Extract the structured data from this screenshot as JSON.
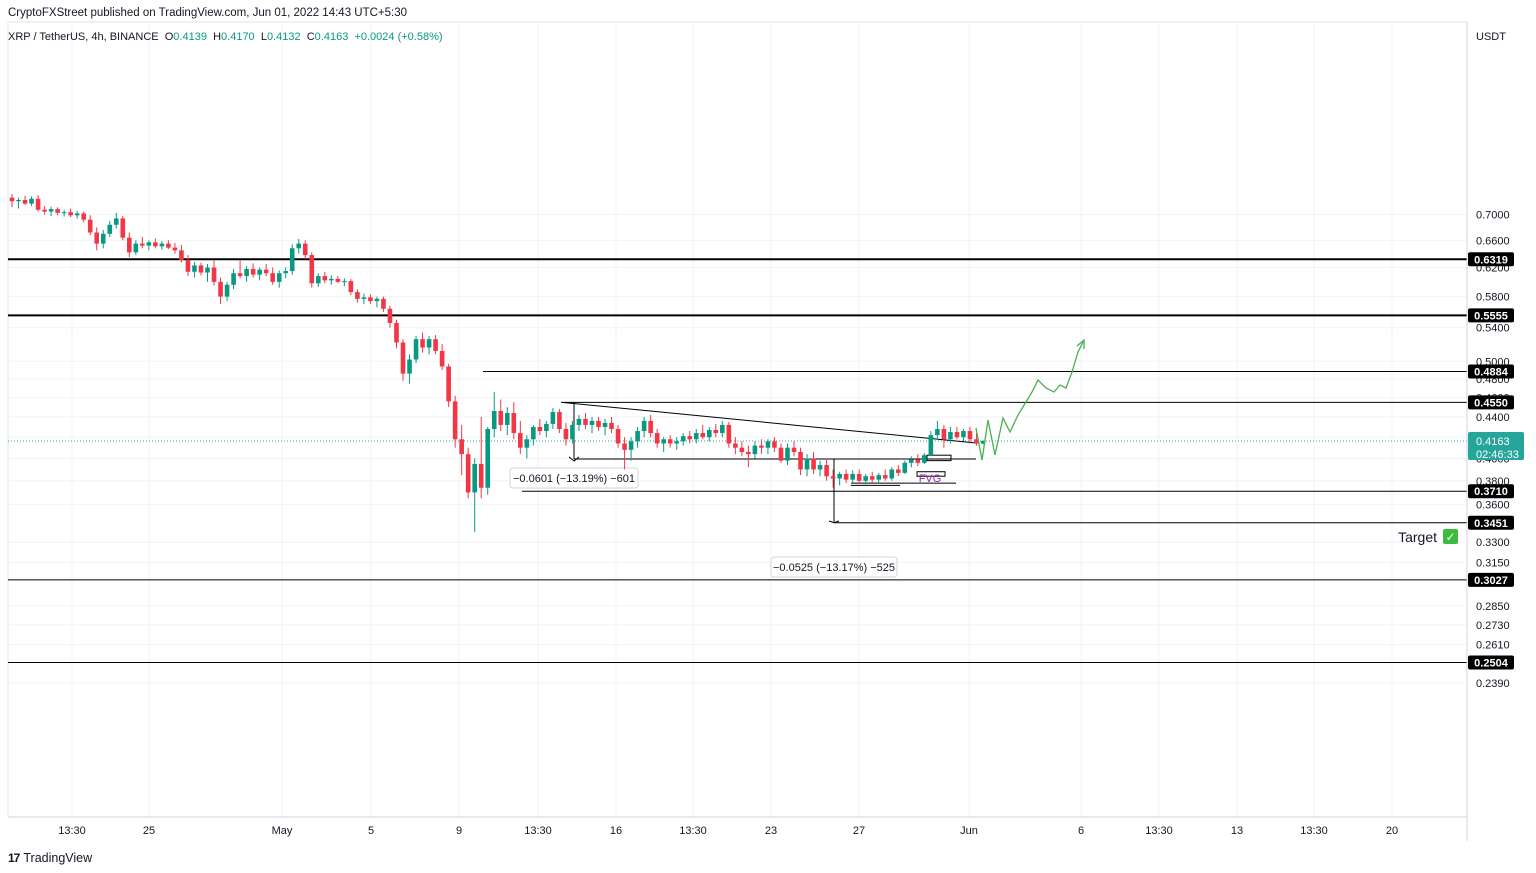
{
  "header": {
    "published": "CryptoFXStreet published on TradingView.com, Jun 01, 2022 14:43 UTC+5:30",
    "symbol": "XRP / TetherUS, 4h, BINANCE",
    "o_label": "O",
    "o_value": "0.4139",
    "h_label": "H",
    "h_value": "0.4170",
    "l_label": "L",
    "l_value": "0.4132",
    "c_label": "C",
    "c_value": "0.4163",
    "change": "+0.0024 (+0.58%)"
  },
  "footer": {
    "brand": "TradingView",
    "logo": "17"
  },
  "axis": {
    "currency": "USDT"
  },
  "colors": {
    "up": "#089981",
    "down": "#f23645",
    "projection": "#4caf50",
    "fvg_text": "#9c27b0",
    "price_tag": "#26a69a",
    "grid": "#f0f3fa"
  },
  "chart_data": {
    "type": "candlestick",
    "title": "XRP / TetherUS, 4h, BINANCE",
    "ylim": [
      0.23,
      0.72
    ],
    "y_scale": "log",
    "y_ticks": [
      "0.7000",
      "0.6600",
      "0.6200",
      "0.5800",
      "0.5400",
      "0.5000",
      "0.4800",
      "0.4600",
      "0.4400",
      "0.4200",
      "0.4000",
      "0.3800",
      "0.3600",
      "0.3300",
      "0.3150",
      "0.2850",
      "0.2730",
      "0.2610",
      "0.2390"
    ],
    "x_ticks": [
      "13:30",
      "25",
      "May",
      "5",
      "9",
      "13:30",
      "16",
      "13:30",
      "23",
      "27",
      "Jun",
      "6",
      "13:30",
      "13",
      "13:30",
      "20"
    ],
    "levels": [
      {
        "label": "0.6319",
        "value": 0.6319,
        "style": "thick"
      },
      {
        "label": "0.5555",
        "value": 0.5555,
        "style": "thick"
      },
      {
        "label": "0.4884",
        "value": 0.4884,
        "style": "thin"
      },
      {
        "label": "0.4550",
        "value": 0.455,
        "style": "thin"
      },
      {
        "label": "0.3710",
        "value": 0.371,
        "style": "thin"
      },
      {
        "label": "0.3451",
        "value": 0.3451,
        "style": "thin"
      },
      {
        "label": "0.3027",
        "value": 0.3027,
        "style": "thin"
      },
      {
        "label": "0.2504",
        "value": 0.2504,
        "style": "thin"
      }
    ],
    "current_price": {
      "label": "0.4163",
      "value": 0.4163,
      "countdown": "02:46:33"
    },
    "annotations": {
      "measure1": "−0.0601 (−13.19%) −601",
      "measure2": "−0.0525 (−13.17%) −525",
      "fvg": "FVG",
      "target": "Target",
      "target_check": "✓"
    },
    "candles": [
      {
        "o": 0.728,
        "h": 0.734,
        "l": 0.712,
        "c": 0.722
      },
      {
        "o": 0.722,
        "h": 0.728,
        "l": 0.71,
        "c": 0.724
      },
      {
        "o": 0.724,
        "h": 0.731,
        "l": 0.716,
        "c": 0.718
      },
      {
        "o": 0.718,
        "h": 0.73,
        "l": 0.714,
        "c": 0.726
      },
      {
        "o": 0.726,
        "h": 0.732,
        "l": 0.705,
        "c": 0.708
      },
      {
        "o": 0.708,
        "h": 0.714,
        "l": 0.7,
        "c": 0.705
      },
      {
        "o": 0.705,
        "h": 0.713,
        "l": 0.698,
        "c": 0.709
      },
      {
        "o": 0.709,
        "h": 0.712,
        "l": 0.699,
        "c": 0.703
      },
      {
        "o": 0.703,
        "h": 0.708,
        "l": 0.697,
        "c": 0.704
      },
      {
        "o": 0.704,
        "h": 0.71,
        "l": 0.696,
        "c": 0.699
      },
      {
        "o": 0.699,
        "h": 0.706,
        "l": 0.694,
        "c": 0.702
      },
      {
        "o": 0.702,
        "h": 0.705,
        "l": 0.688,
        "c": 0.692
      },
      {
        "o": 0.692,
        "h": 0.699,
        "l": 0.668,
        "c": 0.672
      },
      {
        "o": 0.672,
        "h": 0.68,
        "l": 0.645,
        "c": 0.655
      },
      {
        "o": 0.655,
        "h": 0.676,
        "l": 0.648,
        "c": 0.67
      },
      {
        "o": 0.67,
        "h": 0.69,
        "l": 0.665,
        "c": 0.684
      },
      {
        "o": 0.684,
        "h": 0.703,
        "l": 0.678,
        "c": 0.694
      },
      {
        "o": 0.694,
        "h": 0.698,
        "l": 0.66,
        "c": 0.664
      },
      {
        "o": 0.664,
        "h": 0.672,
        "l": 0.635,
        "c": 0.642
      },
      {
        "o": 0.642,
        "h": 0.66,
        "l": 0.638,
        "c": 0.655
      },
      {
        "o": 0.655,
        "h": 0.665,
        "l": 0.648,
        "c": 0.652
      },
      {
        "o": 0.652,
        "h": 0.66,
        "l": 0.645,
        "c": 0.657
      },
      {
        "o": 0.657,
        "h": 0.663,
        "l": 0.648,
        "c": 0.651
      },
      {
        "o": 0.651,
        "h": 0.659,
        "l": 0.646,
        "c": 0.655
      },
      {
        "o": 0.655,
        "h": 0.66,
        "l": 0.647,
        "c": 0.649
      },
      {
        "o": 0.649,
        "h": 0.656,
        "l": 0.64,
        "c": 0.645
      },
      {
        "o": 0.645,
        "h": 0.653,
        "l": 0.627,
        "c": 0.631
      },
      {
        "o": 0.631,
        "h": 0.638,
        "l": 0.608,
        "c": 0.614
      },
      {
        "o": 0.614,
        "h": 0.628,
        "l": 0.606,
        "c": 0.623
      },
      {
        "o": 0.623,
        "h": 0.627,
        "l": 0.609,
        "c": 0.613
      },
      {
        "o": 0.613,
        "h": 0.625,
        "l": 0.6,
        "c": 0.62
      },
      {
        "o": 0.62,
        "h": 0.63,
        "l": 0.595,
        "c": 0.6
      },
      {
        "o": 0.6,
        "h": 0.606,
        "l": 0.57,
        "c": 0.58
      },
      {
        "o": 0.58,
        "h": 0.6,
        "l": 0.574,
        "c": 0.596
      },
      {
        "o": 0.596,
        "h": 0.618,
        "l": 0.59,
        "c": 0.612
      },
      {
        "o": 0.612,
        "h": 0.63,
        "l": 0.605,
        "c": 0.608
      },
      {
        "o": 0.608,
        "h": 0.622,
        "l": 0.6,
        "c": 0.618
      },
      {
        "o": 0.618,
        "h": 0.626,
        "l": 0.606,
        "c": 0.61
      },
      {
        "o": 0.61,
        "h": 0.62,
        "l": 0.602,
        "c": 0.617
      },
      {
        "o": 0.617,
        "h": 0.625,
        "l": 0.608,
        "c": 0.612
      },
      {
        "o": 0.612,
        "h": 0.62,
        "l": 0.596,
        "c": 0.6
      },
      {
        "o": 0.6,
        "h": 0.616,
        "l": 0.592,
        "c": 0.612
      },
      {
        "o": 0.612,
        "h": 0.62,
        "l": 0.605,
        "c": 0.615
      },
      {
        "o": 0.615,
        "h": 0.654,
        "l": 0.61,
        "c": 0.648
      },
      {
        "o": 0.648,
        "h": 0.662,
        "l": 0.64,
        "c": 0.655
      },
      {
        "o": 0.655,
        "h": 0.66,
        "l": 0.632,
        "c": 0.638
      },
      {
        "o": 0.638,
        "h": 0.642,
        "l": 0.592,
        "c": 0.598
      },
      {
        "o": 0.598,
        "h": 0.612,
        "l": 0.593,
        "c": 0.608
      },
      {
        "o": 0.608,
        "h": 0.614,
        "l": 0.598,
        "c": 0.602
      },
      {
        "o": 0.602,
        "h": 0.609,
        "l": 0.596,
        "c": 0.604
      },
      {
        "o": 0.604,
        "h": 0.608,
        "l": 0.598,
        "c": 0.6
      },
      {
        "o": 0.6,
        "h": 0.605,
        "l": 0.594,
        "c": 0.601
      },
      {
        "o": 0.601,
        "h": 0.604,
        "l": 0.582,
        "c": 0.586
      },
      {
        "o": 0.586,
        "h": 0.59,
        "l": 0.572,
        "c": 0.577
      },
      {
        "o": 0.577,
        "h": 0.584,
        "l": 0.57,
        "c": 0.579
      },
      {
        "o": 0.579,
        "h": 0.583,
        "l": 0.57,
        "c": 0.574
      },
      {
        "o": 0.574,
        "h": 0.58,
        "l": 0.566,
        "c": 0.577
      },
      {
        "o": 0.577,
        "h": 0.58,
        "l": 0.56,
        "c": 0.564
      },
      {
        "o": 0.564,
        "h": 0.568,
        "l": 0.54,
        "c": 0.546
      },
      {
        "o": 0.546,
        "h": 0.55,
        "l": 0.515,
        "c": 0.522
      },
      {
        "o": 0.522,
        "h": 0.526,
        "l": 0.478,
        "c": 0.486
      },
      {
        "o": 0.486,
        "h": 0.508,
        "l": 0.475,
        "c": 0.502
      },
      {
        "o": 0.502,
        "h": 0.53,
        "l": 0.498,
        "c": 0.526
      },
      {
        "o": 0.526,
        "h": 0.534,
        "l": 0.51,
        "c": 0.516
      },
      {
        "o": 0.516,
        "h": 0.53,
        "l": 0.508,
        "c": 0.526
      },
      {
        "o": 0.526,
        "h": 0.531,
        "l": 0.508,
        "c": 0.512
      },
      {
        "o": 0.512,
        "h": 0.52,
        "l": 0.49,
        "c": 0.494
      },
      {
        "o": 0.494,
        "h": 0.497,
        "l": 0.45,
        "c": 0.456
      },
      {
        "o": 0.456,
        "h": 0.462,
        "l": 0.41,
        "c": 0.418
      },
      {
        "o": 0.418,
        "h": 0.432,
        "l": 0.385,
        "c": 0.404
      },
      {
        "o": 0.404,
        "h": 0.41,
        "l": 0.365,
        "c": 0.37
      },
      {
        "o": 0.37,
        "h": 0.4,
        "l": 0.338,
        "c": 0.395
      },
      {
        "o": 0.395,
        "h": 0.44,
        "l": 0.365,
        "c": 0.374
      },
      {
        "o": 0.374,
        "h": 0.43,
        "l": 0.368,
        "c": 0.428
      },
      {
        "o": 0.428,
        "h": 0.466,
        "l": 0.42,
        "c": 0.446
      },
      {
        "o": 0.446,
        "h": 0.458,
        "l": 0.426,
        "c": 0.432
      },
      {
        "o": 0.432,
        "h": 0.45,
        "l": 0.422,
        "c": 0.444
      },
      {
        "o": 0.444,
        "h": 0.455,
        "l": 0.418,
        "c": 0.424
      },
      {
        "o": 0.424,
        "h": 0.436,
        "l": 0.404,
        "c": 0.41
      },
      {
        "o": 0.41,
        "h": 0.422,
        "l": 0.4,
        "c": 0.418
      },
      {
        "o": 0.418,
        "h": 0.432,
        "l": 0.412,
        "c": 0.43
      },
      {
        "o": 0.43,
        "h": 0.438,
        "l": 0.422,
        "c": 0.426
      },
      {
        "o": 0.426,
        "h": 0.436,
        "l": 0.42,
        "c": 0.433
      },
      {
        "o": 0.433,
        "h": 0.449,
        "l": 0.428,
        "c": 0.445
      },
      {
        "o": 0.445,
        "h": 0.448,
        "l": 0.424,
        "c": 0.428
      },
      {
        "o": 0.428,
        "h": 0.434,
        "l": 0.412,
        "c": 0.418
      },
      {
        "o": 0.418,
        "h": 0.436,
        "l": 0.414,
        "c": 0.432
      },
      {
        "o": 0.432,
        "h": 0.442,
        "l": 0.426,
        "c": 0.438
      },
      {
        "o": 0.438,
        "h": 0.444,
        "l": 0.428,
        "c": 0.432
      },
      {
        "o": 0.432,
        "h": 0.44,
        "l": 0.424,
        "c": 0.436
      },
      {
        "o": 0.436,
        "h": 0.44,
        "l": 0.426,
        "c": 0.43
      },
      {
        "o": 0.43,
        "h": 0.438,
        "l": 0.422,
        "c": 0.434
      },
      {
        "o": 0.434,
        "h": 0.44,
        "l": 0.424,
        "c": 0.428
      },
      {
        "o": 0.428,
        "h": 0.432,
        "l": 0.41,
        "c": 0.414
      },
      {
        "o": 0.414,
        "h": 0.42,
        "l": 0.39,
        "c": 0.408
      },
      {
        "o": 0.408,
        "h": 0.42,
        "l": 0.398,
        "c": 0.416
      },
      {
        "o": 0.416,
        "h": 0.43,
        "l": 0.41,
        "c": 0.426
      },
      {
        "o": 0.426,
        "h": 0.44,
        "l": 0.42,
        "c": 0.436
      },
      {
        "o": 0.436,
        "h": 0.442,
        "l": 0.42,
        "c": 0.424
      },
      {
        "o": 0.424,
        "h": 0.428,
        "l": 0.41,
        "c": 0.414
      },
      {
        "o": 0.414,
        "h": 0.42,
        "l": 0.406,
        "c": 0.418
      },
      {
        "o": 0.418,
        "h": 0.422,
        "l": 0.41,
        "c": 0.414
      },
      {
        "o": 0.414,
        "h": 0.42,
        "l": 0.408,
        "c": 0.416
      },
      {
        "o": 0.416,
        "h": 0.424,
        "l": 0.412,
        "c": 0.421
      },
      {
        "o": 0.421,
        "h": 0.426,
        "l": 0.414,
        "c": 0.418
      },
      {
        "o": 0.418,
        "h": 0.428,
        "l": 0.414,
        "c": 0.424
      },
      {
        "o": 0.424,
        "h": 0.432,
        "l": 0.418,
        "c": 0.42
      },
      {
        "o": 0.42,
        "h": 0.43,
        "l": 0.416,
        "c": 0.427
      },
      {
        "o": 0.427,
        "h": 0.433,
        "l": 0.42,
        "c": 0.424
      },
      {
        "o": 0.424,
        "h": 0.436,
        "l": 0.42,
        "c": 0.432
      },
      {
        "o": 0.432,
        "h": 0.435,
        "l": 0.41,
        "c": 0.414
      },
      {
        "o": 0.414,
        "h": 0.42,
        "l": 0.404,
        "c": 0.41
      },
      {
        "o": 0.41,
        "h": 0.416,
        "l": 0.402,
        "c": 0.406
      },
      {
        "o": 0.406,
        "h": 0.412,
        "l": 0.392,
        "c": 0.404
      },
      {
        "o": 0.404,
        "h": 0.416,
        "l": 0.4,
        "c": 0.412
      },
      {
        "o": 0.412,
        "h": 0.418,
        "l": 0.404,
        "c": 0.41
      },
      {
        "o": 0.41,
        "h": 0.418,
        "l": 0.404,
        "c": 0.416
      },
      {
        "o": 0.416,
        "h": 0.42,
        "l": 0.406,
        "c": 0.41
      },
      {
        "o": 0.41,
        "h": 0.414,
        "l": 0.396,
        "c": 0.398
      },
      {
        "o": 0.398,
        "h": 0.414,
        "l": 0.394,
        "c": 0.41
      },
      {
        "o": 0.41,
        "h": 0.416,
        "l": 0.402,
        "c": 0.406
      },
      {
        "o": 0.406,
        "h": 0.41,
        "l": 0.385,
        "c": 0.39
      },
      {
        "o": 0.39,
        "h": 0.404,
        "l": 0.384,
        "c": 0.4
      },
      {
        "o": 0.4,
        "h": 0.406,
        "l": 0.386,
        "c": 0.39
      },
      {
        "o": 0.39,
        "h": 0.398,
        "l": 0.384,
        "c": 0.394
      },
      {
        "o": 0.394,
        "h": 0.4,
        "l": 0.38,
        "c": 0.384
      },
      {
        "o": 0.384,
        "h": 0.39,
        "l": 0.374,
        "c": 0.382
      },
      {
        "o": 0.382,
        "h": 0.388,
        "l": 0.376,
        "c": 0.386
      },
      {
        "o": 0.386,
        "h": 0.39,
        "l": 0.378,
        "c": 0.381
      },
      {
        "o": 0.381,
        "h": 0.389,
        "l": 0.378,
        "c": 0.386
      },
      {
        "o": 0.386,
        "h": 0.39,
        "l": 0.378,
        "c": 0.38
      },
      {
        "o": 0.38,
        "h": 0.386,
        "l": 0.377,
        "c": 0.384
      },
      {
        "o": 0.384,
        "h": 0.388,
        "l": 0.378,
        "c": 0.381
      },
      {
        "o": 0.381,
        "h": 0.387,
        "l": 0.378,
        "c": 0.385
      },
      {
        "o": 0.385,
        "h": 0.39,
        "l": 0.38,
        "c": 0.382
      },
      {
        "o": 0.382,
        "h": 0.392,
        "l": 0.38,
        "c": 0.39
      },
      {
        "o": 0.39,
        "h": 0.394,
        "l": 0.384,
        "c": 0.387
      },
      {
        "o": 0.387,
        "h": 0.398,
        "l": 0.386,
        "c": 0.396
      },
      {
        "o": 0.396,
        "h": 0.402,
        "l": 0.392,
        "c": 0.399
      },
      {
        "o": 0.399,
        "h": 0.404,
        "l": 0.393,
        "c": 0.396
      },
      {
        "o": 0.396,
        "h": 0.405,
        "l": 0.395,
        "c": 0.403
      },
      {
        "o": 0.403,
        "h": 0.426,
        "l": 0.402,
        "c": 0.422
      },
      {
        "o": 0.422,
        "h": 0.436,
        "l": 0.418,
        "c": 0.428
      },
      {
        "o": 0.428,
        "h": 0.432,
        "l": 0.41,
        "c": 0.418
      },
      {
        "o": 0.418,
        "h": 0.43,
        "l": 0.414,
        "c": 0.425
      },
      {
        "o": 0.425,
        "h": 0.43,
        "l": 0.418,
        "c": 0.42
      },
      {
        "o": 0.42,
        "h": 0.428,
        "l": 0.416,
        "c": 0.426
      },
      {
        "o": 0.426,
        "h": 0.43,
        "l": 0.414,
        "c": 0.418
      },
      {
        "o": 0.418,
        "h": 0.424,
        "l": 0.412,
        "c": 0.4139
      },
      {
        "o": 0.4139,
        "h": 0.417,
        "l": 0.4132,
        "c": 0.4163
      }
    ]
  }
}
